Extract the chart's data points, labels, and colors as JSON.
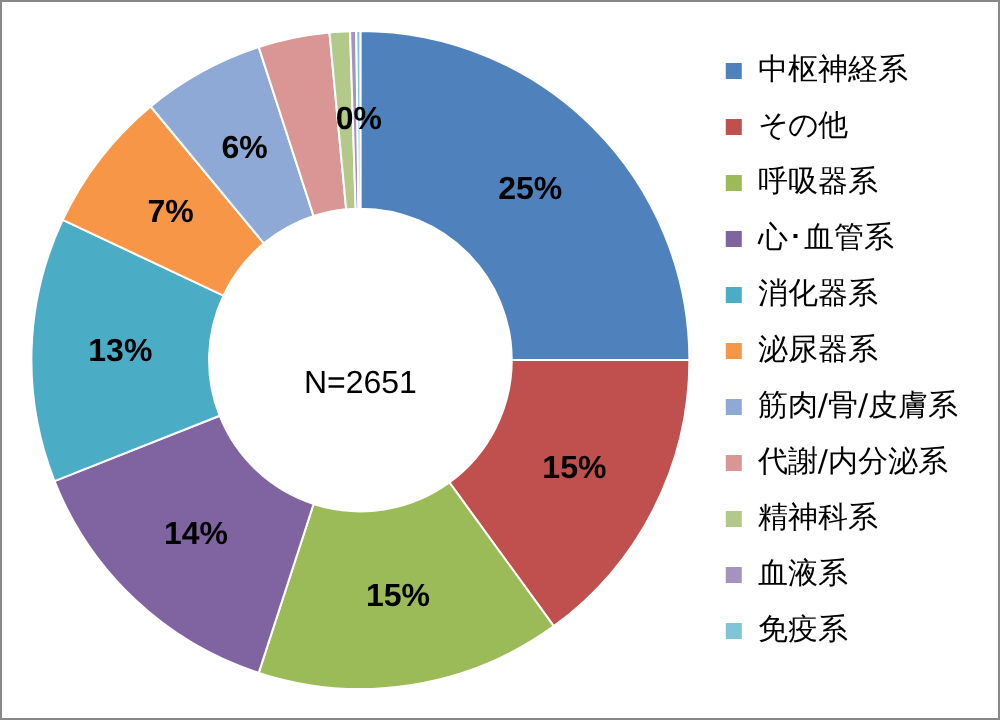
{
  "chart_data": {
    "type": "donut",
    "categories": [
      "中枢神経系",
      "その他",
      "呼吸器系",
      "心･血管系",
      "消化器系",
      "泌尿器系",
      "筋肉/骨/皮膚系",
      "代謝/内分泌系",
      "精神科系",
      "血液系",
      "免疫系"
    ],
    "values": [
      25,
      15,
      15,
      14,
      13,
      7,
      6,
      3.5,
      1,
      0.3,
      0.2
    ],
    "colors": [
      "#4f81bd",
      "#c0504d",
      "#9bbb59",
      "#8064a2",
      "#4bacc6",
      "#f79646",
      "#8ea9d5",
      "#d99694",
      "#b3c98a",
      "#a493c0",
      "#7fc5d6"
    ],
    "value_labels": [
      "25%",
      "15%",
      "15%",
      "14%",
      "13%",
      "7%",
      "6%",
      null,
      null,
      null,
      "0%"
    ],
    "annotations": [
      "N=2651"
    ],
    "legend": "right"
  }
}
